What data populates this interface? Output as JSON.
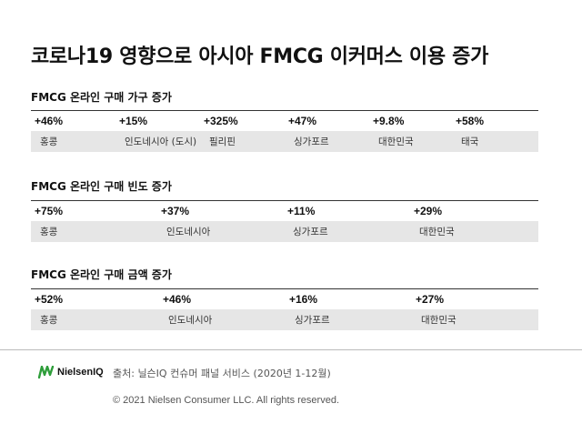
{
  "title": "코로나19 영향으로 아시아 FMCG 이커머스 이용 증가",
  "sections": [
    {
      "title": "FMCG 온라인 구매 가구 증가",
      "items": [
        {
          "value": "+46%",
          "name": "홍콩"
        },
        {
          "value": "+15%",
          "name": "인도네시아 (도시)"
        },
        {
          "value": "+325%",
          "name": "필리핀"
        },
        {
          "value": "+47%",
          "name": "싱가포르"
        },
        {
          "value": "+9.8%",
          "name": "대한민국"
        },
        {
          "value": "+58%",
          "name": "태국"
        }
      ]
    },
    {
      "title": "FMCG 온라인 구매 빈도 증가",
      "items": [
        {
          "value": "+75%",
          "name": "홍콩"
        },
        {
          "value": "+37%",
          "name": "인도네시아"
        },
        {
          "value": "+11%",
          "name": "싱가포르"
        },
        {
          "value": "+29%",
          "name": "대한민국"
        }
      ]
    },
    {
      "title": "FMCG 온라인 구매 금액 증가",
      "items": [
        {
          "value": "+52%",
          "name": "홍콩"
        },
        {
          "value": "+46%",
          "name": "인도네시아"
        },
        {
          "value": "+16%",
          "name": "싱가포르"
        },
        {
          "value": "+27%",
          "name": "대한민국"
        }
      ]
    }
  ],
  "footer": {
    "logo_text": "NielsenIQ",
    "source": "출처: 닐슨IQ 컨슈머 패널 서비스 (2020년 1-12월)",
    "copyright": "© 2021 Nielsen Consumer LLC. All rights reserved."
  },
  "colors": {
    "logo_green": "#2e9e3a",
    "name_row_bg": "#e6e6e6"
  }
}
